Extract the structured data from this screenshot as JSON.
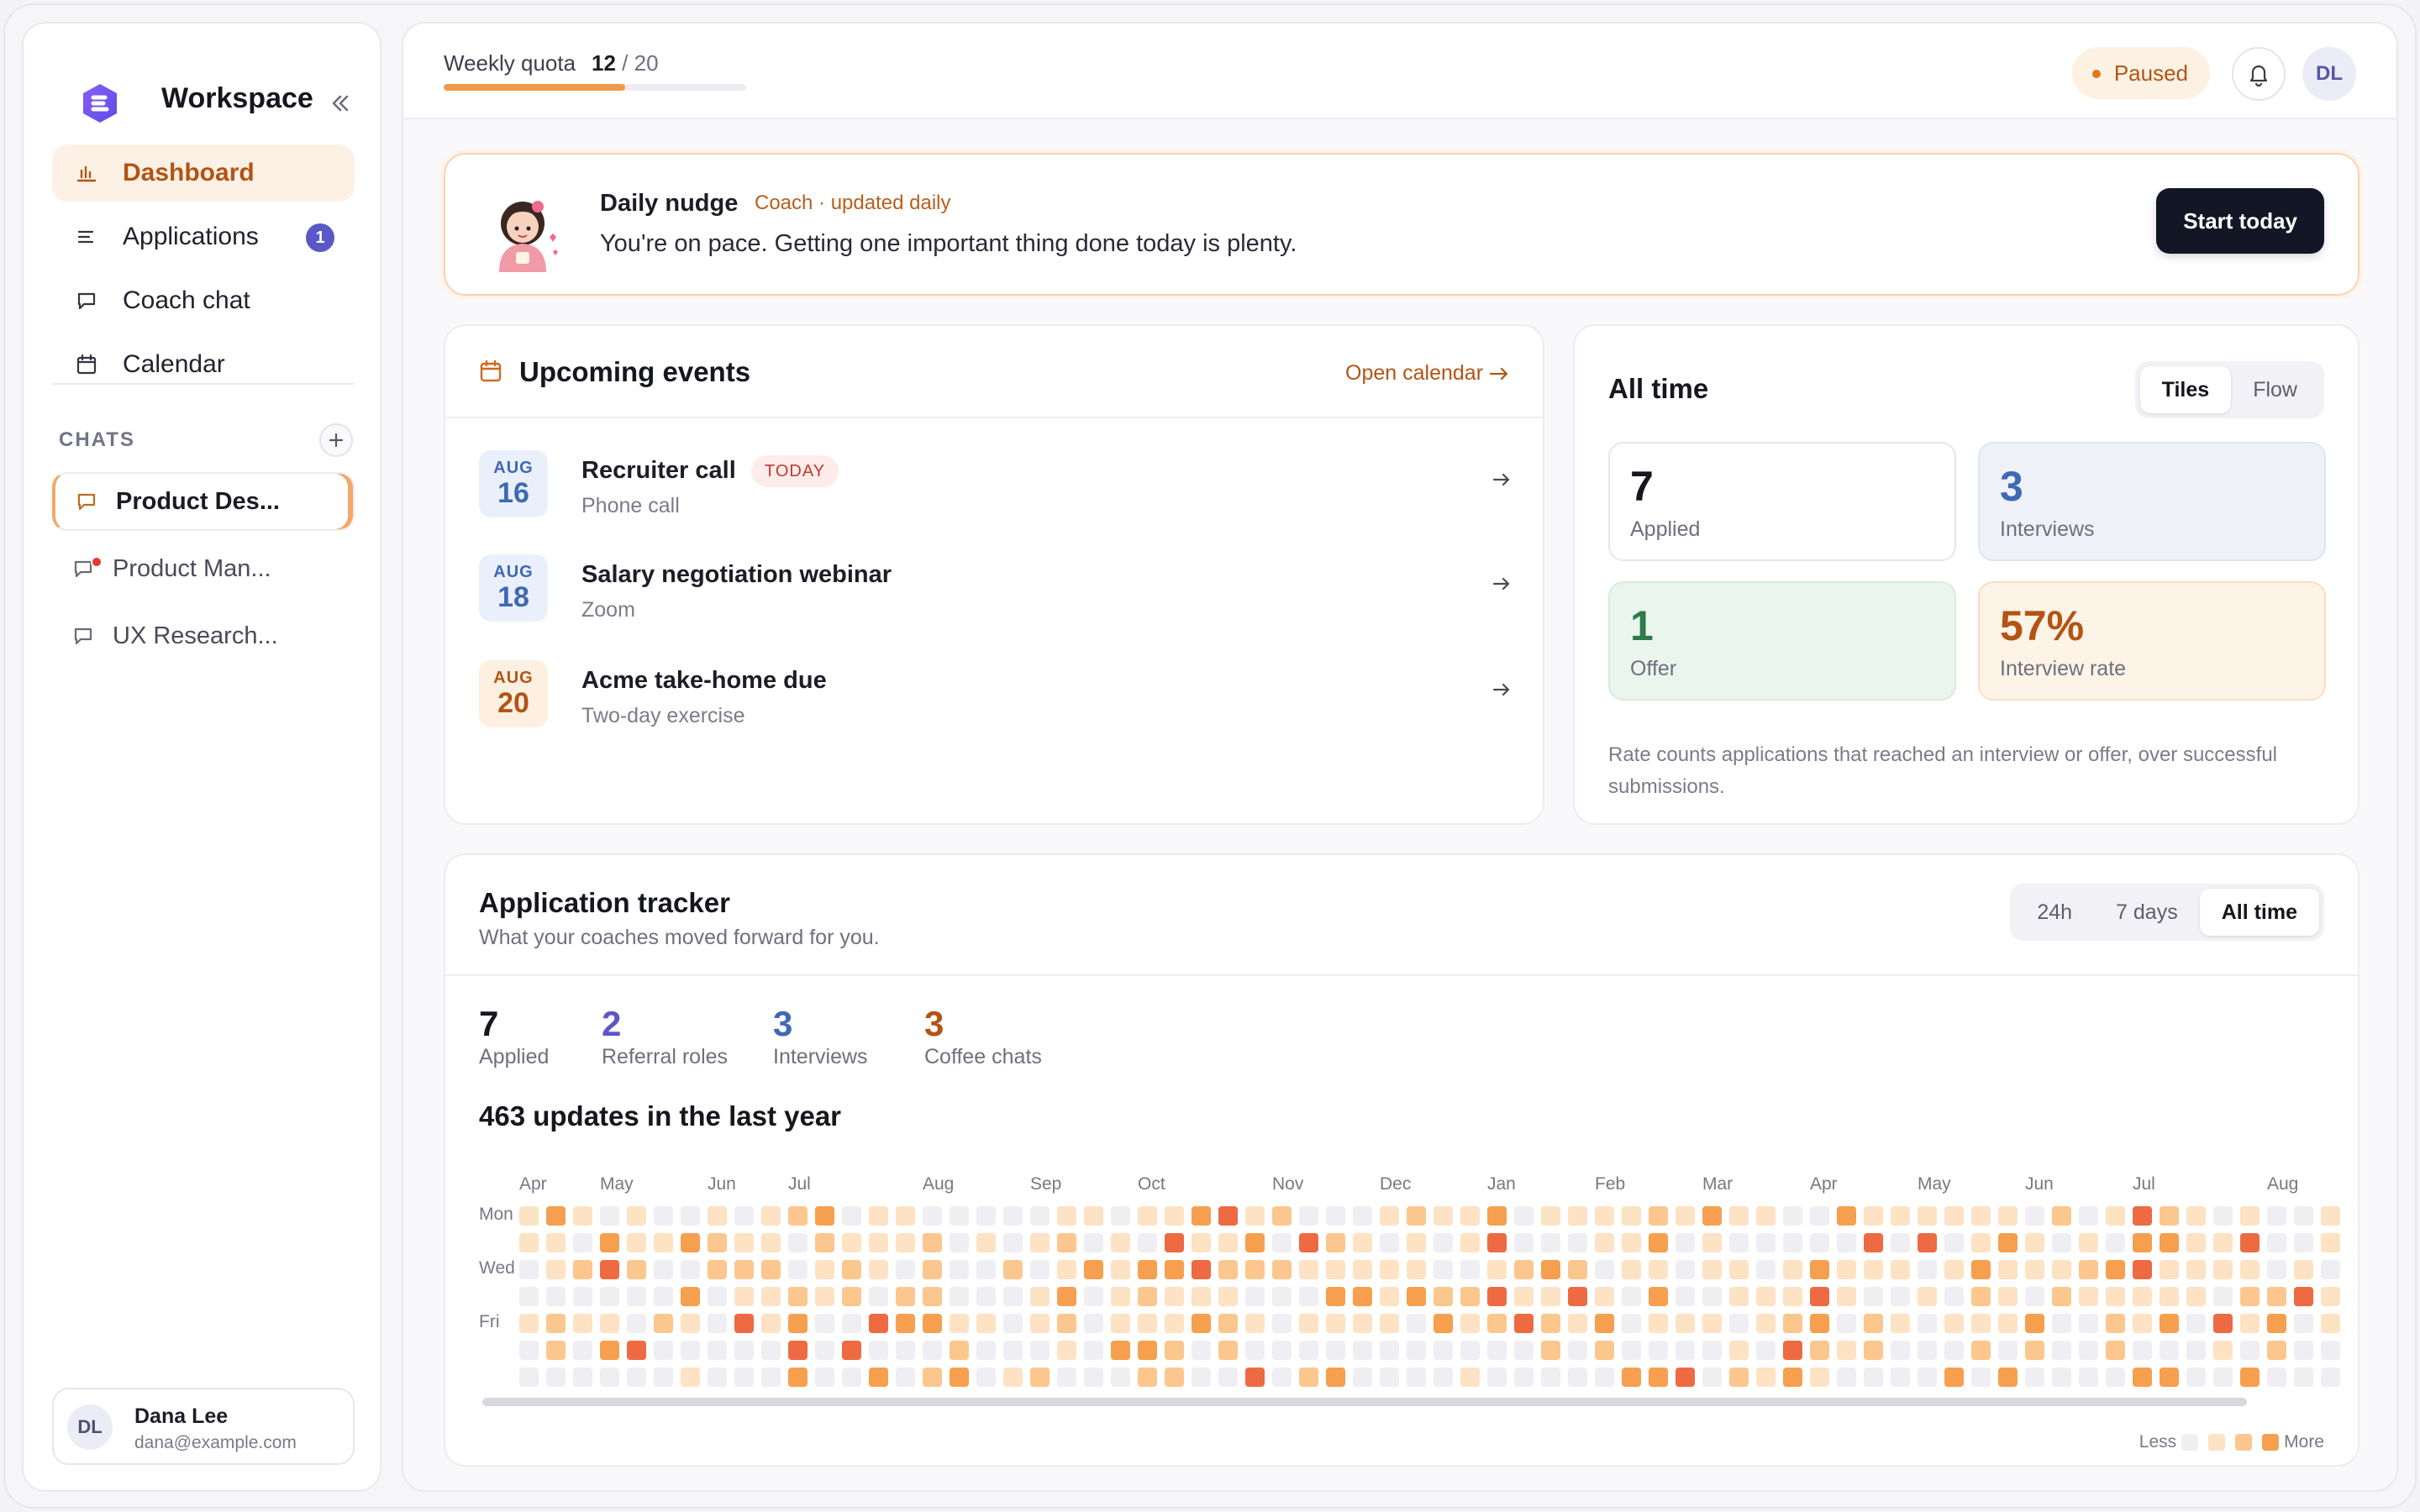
{
  "sidebar": {
    "brand": "Workspace",
    "nav": [
      {
        "label": "Dashboard",
        "icon": "bar-chart-icon",
        "active": true
      },
      {
        "label": "Applications",
        "icon": "list-icon",
        "badge": "1"
      },
      {
        "label": "Coach chat",
        "icon": "chat-bubble-icon"
      },
      {
        "label": "Calendar",
        "icon": "calendar-icon"
      }
    ],
    "chats_title": "CHATS",
    "chats": [
      {
        "label": "Product Des...",
        "active": true
      },
      {
        "label": "Product Man...",
        "unread": true
      },
      {
        "label": "UX Research..."
      }
    ],
    "user": {
      "initials": "DL",
      "name": "Dana Lee",
      "email": "dana@example.com"
    }
  },
  "topbar": {
    "quota_label": "Weekly quota",
    "quota_used": "12",
    "quota_total": "/ 20",
    "quota_fraction": 0.6,
    "status": "Paused",
    "avatar": "DL"
  },
  "nudge": {
    "title": "Daily nudge",
    "subtitle": "Coach · updated daily",
    "text": "You're on pace. Getting one important thing done today is plenty.",
    "button": "Start today"
  },
  "events": {
    "title": "Upcoming events",
    "open_link": "Open calendar",
    "items": [
      {
        "month": "AUG",
        "day": "16",
        "name": "Recruiter call",
        "meta": "Phone call",
        "badge": "TODAY"
      },
      {
        "month": "AUG",
        "day": "18",
        "name": "Salary negotiation webinar",
        "meta": "Zoom"
      },
      {
        "month": "AUG",
        "day": "20",
        "name": "Acme take-home due",
        "meta": "Two-day exercise"
      }
    ]
  },
  "alltime": {
    "title": "All time",
    "toggle": [
      "Tiles",
      "Flow"
    ],
    "tiles": [
      {
        "value": "7",
        "label": "Applied"
      },
      {
        "value": "3",
        "label": "Interviews"
      },
      {
        "value": "1",
        "label": "Offer"
      },
      {
        "value": "57%",
        "label": "Interview rate"
      }
    ],
    "note": "Rate counts applications that reached an interview or offer, over successful submissions."
  },
  "tracker": {
    "title": "Application tracker",
    "subtitle": "What your coaches moved forward for you.",
    "ranges": [
      "24h",
      "7 days",
      "All time"
    ],
    "stats": [
      {
        "value": "7",
        "label": "Applied",
        "color": "#16161f"
      },
      {
        "value": "2",
        "label": "Referral roles",
        "color": "#5b57c7"
      },
      {
        "value": "3",
        "label": "Interviews",
        "color": "#3f68b5"
      },
      {
        "value": "3",
        "label": "Coffee chats",
        "color": "#b25414"
      }
    ],
    "count_text": "463 updates in the last year",
    "months": [
      "Apr",
      "May",
      "Jun",
      "Jul",
      "Aug",
      "Sep",
      "Oct",
      "Nov",
      "Dec",
      "Jan",
      "Feb",
      "Mar",
      "Apr",
      "May",
      "Jun",
      "Jul",
      "Aug"
    ],
    "days": [
      "Mon",
      "Wed",
      "Fri"
    ],
    "legend_less": "Less",
    "legend_more": "More",
    "colors": [
      "#efeff3",
      "#fde2c4",
      "#fbc78e",
      "#f6a04f",
      "#ee6a42"
    ]
  }
}
